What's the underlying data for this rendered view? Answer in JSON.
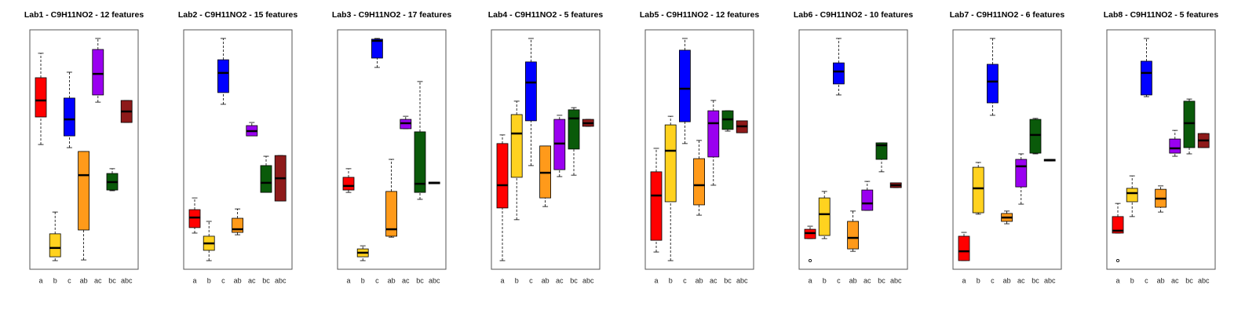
{
  "chart_data": [
    {
      "type": "box",
      "title": "Lab1 - C9H11NO2 - 12 features",
      "categories": [
        "a",
        "b",
        "c",
        "ab",
        "ac",
        "bc",
        "abc"
      ],
      "colors": [
        "#ff0000",
        "#ffd21f",
        "#0000ff",
        "#ff9a1a",
        "#9a00f0",
        "#0a5a0a",
        "#8e1a1a"
      ],
      "ylim": [
        0,
        100
      ],
      "stats": [
        {
          "whislo": 52.1,
          "q1": 63.6,
          "med": 70.5,
          "q3": 80.0,
          "whishi": 90.2
        },
        {
          "whislo": 3.6,
          "q1": 5.2,
          "med": 8.9,
          "q3": 14.8,
          "whishi": 23.9
        },
        {
          "whislo": 50.8,
          "q1": 55.7,
          "med": 62.6,
          "q3": 71.5,
          "whishi": 82.3
        },
        {
          "whislo": 3.9,
          "q1": 16.4,
          "med": 39.3,
          "q3": 49.2,
          "whishi": 49.2
        },
        {
          "whislo": 69.8,
          "q1": 72.8,
          "med": 81.6,
          "q3": 91.8,
          "whishi": 96.4
        },
        {
          "whislo": 32.8,
          "q1": 33.1,
          "med": 36.4,
          "q3": 40.0,
          "whishi": 42.0
        },
        {
          "whislo": 61.3,
          "q1": 61.3,
          "med": 65.9,
          "q3": 70.5,
          "whishi": 70.5
        }
      ]
    },
    {
      "type": "box",
      "title": "Lab2 - C9H11NO2 - 15 features",
      "categories": [
        "a",
        "b",
        "c",
        "ab",
        "ac",
        "bc",
        "abc"
      ],
      "colors": [
        "#ff0000",
        "#ffd21f",
        "#0000ff",
        "#ff9a1a",
        "#9a00f0",
        "#0a5a0a",
        "#8e1a1a"
      ],
      "ylim": [
        0,
        100
      ],
      "stats": [
        {
          "whislo": 15.1,
          "q1": 17.4,
          "med": 21.6,
          "q3": 24.9,
          "whishi": 29.8
        },
        {
          "whislo": 3.6,
          "q1": 7.9,
          "med": 10.8,
          "q3": 13.8,
          "whishi": 20.0
        },
        {
          "whislo": 68.9,
          "q1": 73.8,
          "med": 82.0,
          "q3": 87.5,
          "whishi": 96.4
        },
        {
          "whislo": 14.4,
          "q1": 15.4,
          "med": 16.7,
          "q3": 21.3,
          "whishi": 25.2
        },
        {
          "whislo": 55.7,
          "q1": 55.7,
          "med": 57.7,
          "q3": 60.0,
          "whishi": 61.3
        },
        {
          "whislo": 32.1,
          "q1": 32.1,
          "med": 36.1,
          "q3": 43.3,
          "whishi": 47.2
        },
        {
          "whislo": 28.5,
          "q1": 28.5,
          "med": 38.0,
          "q3": 47.5,
          "whishi": 47.5
        }
      ]
    },
    {
      "type": "box",
      "title": "Lab3 - C9H11NO2 - 17 features",
      "categories": [
        "a",
        "b",
        "c",
        "ab",
        "ac",
        "bc",
        "abc"
      ],
      "colors": [
        "#ff0000",
        "#ffd21f",
        "#0000ff",
        "#ff9a1a",
        "#9a00f0",
        "#0a5a0a",
        "#8e1a1a"
      ],
      "ylim": [
        0,
        100
      ],
      "stats": [
        {
          "whislo": 32.1,
          "q1": 33.1,
          "med": 34.8,
          "q3": 38.4,
          "whishi": 42.0
        },
        {
          "whislo": 3.6,
          "q1": 5.2,
          "med": 6.9,
          "q3": 8.5,
          "whishi": 9.8
        },
        {
          "whislo": 84.3,
          "q1": 88.2,
          "med": 95.4,
          "q3": 96.1,
          "whishi": 96.4
        },
        {
          "whislo": 13.4,
          "q1": 13.8,
          "med": 16.7,
          "q3": 32.5,
          "whishi": 45.9
        },
        {
          "whislo": 58.7,
          "q1": 58.7,
          "med": 61.0,
          "q3": 62.6,
          "whishi": 63.9
        },
        {
          "whislo": 29.2,
          "q1": 32.1,
          "med": 35.7,
          "q3": 57.4,
          "whishi": 78.4
        },
        {
          "whislo": 35.7,
          "q1": 35.7,
          "med": 36.1,
          "q3": 36.4,
          "whishi": 36.4
        }
      ]
    },
    {
      "type": "box",
      "title": "Lab4 - C9H11NO2 - 5 features",
      "categories": [
        "a",
        "b",
        "c",
        "ab",
        "ac",
        "bc",
        "abc"
      ],
      "colors": [
        "#ff0000",
        "#ffd21f",
        "#0000ff",
        "#ff9a1a",
        "#9a00f0",
        "#0a5a0a",
        "#8e1a1a"
      ],
      "ylim": [
        0,
        100
      ],
      "stats": [
        {
          "whislo": 3.6,
          "q1": 25.6,
          "med": 35.1,
          "q3": 52.5,
          "whishi": 56.1
        },
        {
          "whislo": 20.7,
          "q1": 38.4,
          "med": 56.7,
          "q3": 64.6,
          "whishi": 70.2
        },
        {
          "whislo": 43.3,
          "q1": 62.0,
          "med": 78.0,
          "q3": 86.6,
          "whishi": 96.4
        },
        {
          "whislo": 26.2,
          "q1": 29.8,
          "med": 40.3,
          "q3": 51.5,
          "whishi": 51.5
        },
        {
          "whislo": 38.7,
          "q1": 41.6,
          "med": 52.5,
          "q3": 62.6,
          "whishi": 64.3
        },
        {
          "whislo": 39.3,
          "q1": 50.2,
          "med": 63.0,
          "q3": 66.6,
          "whishi": 67.5
        },
        {
          "whislo": 59.7,
          "q1": 59.7,
          "med": 61.0,
          "q3": 62.6,
          "whishi": 62.6
        }
      ]
    },
    {
      "type": "box",
      "title": "Lab5 - C9H11NO2 - 12 features",
      "categories": [
        "a",
        "b",
        "c",
        "ab",
        "ac",
        "bc",
        "abc"
      ],
      "colors": [
        "#ff0000",
        "#ffd21f",
        "#0000ff",
        "#ff9a1a",
        "#9a00f0",
        "#0a5a0a",
        "#8e1a1a"
      ],
      "ylim": [
        0,
        100
      ],
      "stats": [
        {
          "whislo": 7.2,
          "q1": 12.1,
          "med": 30.8,
          "q3": 40.7,
          "whishi": 50.5
        },
        {
          "whislo": 3.6,
          "q1": 28.2,
          "med": 49.5,
          "q3": 60.3,
          "whishi": 63.9
        },
        {
          "whislo": 52.5,
          "q1": 61.6,
          "med": 75.4,
          "q3": 91.5,
          "whishi": 96.4
        },
        {
          "whislo": 22.6,
          "q1": 26.9,
          "med": 35.1,
          "q3": 46.2,
          "whishi": 53.8
        },
        {
          "whislo": 35.1,
          "q1": 46.9,
          "med": 61.0,
          "q3": 66.2,
          "whishi": 70.5
        },
        {
          "whislo": 57.7,
          "q1": 58.4,
          "med": 62.6,
          "q3": 66.2,
          "whishi": 66.2
        },
        {
          "whislo": 57.0,
          "q1": 57.0,
          "med": 59.7,
          "q3": 62.0,
          "whishi": 62.0
        }
      ]
    },
    {
      "type": "box",
      "title": "Lab6 - C9H11NO2 - 10 features",
      "categories": [
        "a",
        "b",
        "c",
        "ab",
        "ac",
        "bc",
        "abc"
      ],
      "colors": [
        "#ff0000",
        "#ffd21f",
        "#0000ff",
        "#ff9a1a",
        "#9a00f0",
        "#0a5a0a",
        "#8e1a1a"
      ],
      "ylim": [
        0,
        100
      ],
      "stats": [
        {
          "whislo": 12.8,
          "q1": 12.8,
          "med": 15.1,
          "q3": 16.7,
          "whishi": 18.0,
          "fliers": [
            3.6
          ]
        },
        {
          "whislo": 12.8,
          "q1": 14.1,
          "med": 23.0,
          "q3": 29.8,
          "whishi": 32.5
        },
        {
          "whislo": 72.8,
          "q1": 77.4,
          "med": 82.6,
          "q3": 86.2,
          "whishi": 96.4
        },
        {
          "whislo": 7.5,
          "q1": 8.5,
          "med": 13.1,
          "q3": 20.0,
          "whishi": 24.3
        },
        {
          "whislo": 24.6,
          "q1": 24.6,
          "med": 27.5,
          "q3": 33.1,
          "whishi": 36.7
        },
        {
          "whislo": 40.7,
          "q1": 45.9,
          "med": 51.8,
          "q3": 52.8,
          "whishi": 52.8
        },
        {
          "whislo": 34.1,
          "q1": 34.1,
          "med": 35.1,
          "q3": 36.1,
          "whishi": 36.1
        }
      ]
    },
    {
      "type": "box",
      "title": "Lab7 - C9H11NO2 - 6 features",
      "categories": [
        "a",
        "b",
        "c",
        "ab",
        "ac",
        "bc",
        "abc"
      ],
      "colors": [
        "#ff0000",
        "#ffd21f",
        "#0000ff",
        "#ff9a1a",
        "#9a00f0",
        "#0a5a0a",
        "#8e1a1a"
      ],
      "ylim": [
        0,
        100
      ],
      "stats": [
        {
          "whislo": 3.6,
          "q1": 3.6,
          "med": 7.5,
          "q3": 13.8,
          "whishi": 15.4
        },
        {
          "whislo": 23.0,
          "q1": 23.6,
          "med": 33.8,
          "q3": 42.6,
          "whishi": 44.6
        },
        {
          "whislo": 64.3,
          "q1": 69.5,
          "med": 78.4,
          "q3": 85.6,
          "whishi": 96.4
        },
        {
          "whislo": 19.0,
          "q1": 20.0,
          "med": 21.6,
          "q3": 23.3,
          "whishi": 24.3
        },
        {
          "whislo": 27.2,
          "q1": 34.4,
          "med": 43.0,
          "q3": 45.9,
          "whishi": 48.2
        },
        {
          "whislo": 48.2,
          "q1": 48.5,
          "med": 56.1,
          "q3": 62.6,
          "whishi": 63.0
        },
        {
          "whislo": 45.2,
          "q1": 45.2,
          "med": 45.6,
          "q3": 45.9,
          "whishi": 45.9
        }
      ]
    },
    {
      "type": "box",
      "title": "Lab8 - C9H11NO2 - 5 features",
      "categories": [
        "a",
        "b",
        "c",
        "ab",
        "ac",
        "bc",
        "abc"
      ],
      "colors": [
        "#ff0000",
        "#ffd21f",
        "#0000ff",
        "#ff9a1a",
        "#9a00f0",
        "#0a5a0a",
        "#8e1a1a"
      ],
      "ylim": [
        0,
        100
      ],
      "stats": [
        {
          "whislo": 15.1,
          "q1": 15.1,
          "med": 16.1,
          "q3": 22.0,
          "whishi": 27.5,
          "fliers": [
            3.6
          ]
        },
        {
          "whislo": 22.0,
          "q1": 28.2,
          "med": 31.8,
          "q3": 33.8,
          "whishi": 39.0
        },
        {
          "whislo": 72.1,
          "q1": 72.8,
          "med": 82.0,
          "q3": 86.9,
          "whishi": 96.4
        },
        {
          "whislo": 23.9,
          "q1": 25.9,
          "med": 29.5,
          "q3": 33.4,
          "whishi": 34.8
        },
        {
          "whislo": 47.2,
          "q1": 48.5,
          "med": 50.5,
          "q3": 54.4,
          "whishi": 58.0
        },
        {
          "whislo": 48.2,
          "q1": 50.8,
          "med": 61.0,
          "q3": 70.2,
          "whishi": 71.1
        },
        {
          "whislo": 50.8,
          "q1": 50.8,
          "med": 53.8,
          "q3": 56.7,
          "whishi": 56.7
        }
      ]
    }
  ]
}
